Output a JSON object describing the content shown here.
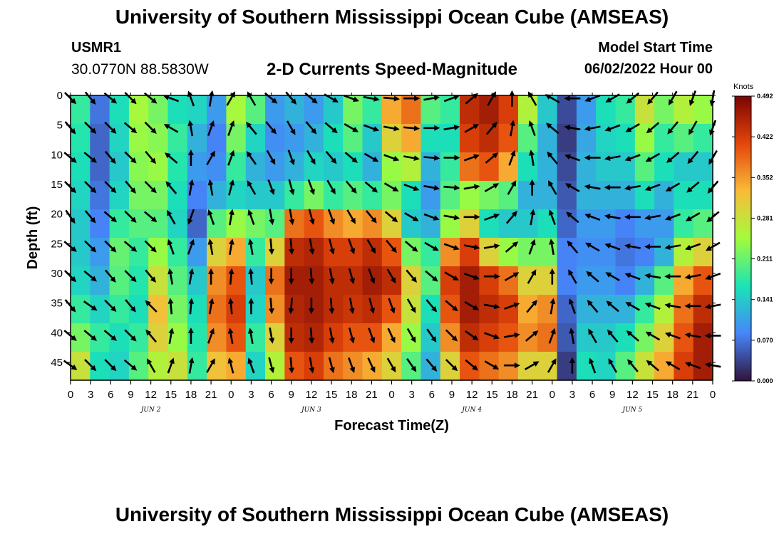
{
  "header": {
    "title_top": "University of Southern Mississippi Ocean Cube (AMSEAS)",
    "title_bottom": "University of Southern Mississippi Ocean Cube (AMSEAS)",
    "station_id": "USMR1",
    "station_coords": "30.0770N  88.5830W",
    "subtitle": "2-D Currents Speed-Magnitude",
    "model_start_label": "Model Start Time",
    "model_start_value": "06/02/2022 Hour 00"
  },
  "chart_data": {
    "type": "heatmap",
    "title": "2-D Currents Speed-Magnitude",
    "xlabel": "Forecast Time(Z)",
    "ylabel": "Depth (ft)",
    "x_tick_labels": [
      "0",
      "3",
      "6",
      "9",
      "12",
      "15",
      "18",
      "21",
      "0",
      "3",
      "6",
      "9",
      "12",
      "15",
      "18",
      "21",
      "0",
      "3",
      "6",
      "9",
      "12",
      "15",
      "18",
      "21",
      "0",
      "3",
      "6",
      "9",
      "12",
      "15",
      "18",
      "21",
      "0"
    ],
    "date_labels": [
      {
        "label": "JUN 2",
        "hour": 12
      },
      {
        "label": "JUN 3",
        "hour": 36
      },
      {
        "label": "JUN 4",
        "hour": 60
      },
      {
        "label": "JUN 5",
        "hour": 84
      }
    ],
    "xlim_hours": [
      0,
      96
    ],
    "y_ticks": [
      0,
      5,
      10,
      15,
      20,
      25,
      30,
      35,
      40,
      45
    ],
    "ylim": [
      0,
      48
    ],
    "y_inverted": true,
    "colorbar": {
      "unit_label": "Knots",
      "tick_labels": [
        "0.000",
        "0.070",
        "0.141",
        "0.211",
        "0.281",
        "0.352",
        "0.422",
        "0.492"
      ],
      "min": 0.0,
      "max": 0.492,
      "colormap": [
        "#30123b",
        "#4686fb",
        "#1ae4b6",
        "#a2fc3c",
        "#fabb39",
        "#e4460a",
        "#7a0403"
      ]
    },
    "speed_columns": [
      {
        "hour": 0,
        "speeds": [
          0.18,
          0.17,
          0.16,
          0.15,
          0.14,
          0.14,
          0.15,
          0.18,
          0.22,
          0.28
        ]
      },
      {
        "hour": 3,
        "speeds": [
          0.07,
          0.06,
          0.06,
          0.07,
          0.08,
          0.1,
          0.12,
          0.15,
          0.18,
          0.16
        ]
      },
      {
        "hour": 6,
        "speeds": [
          0.16,
          0.15,
          0.14,
          0.15,
          0.18,
          0.21,
          0.2,
          0.18,
          0.16,
          0.15
        ]
      },
      {
        "hour": 9,
        "speeds": [
          0.25,
          0.24,
          0.23,
          0.22,
          0.2,
          0.18,
          0.17,
          0.16,
          0.18,
          0.2
        ]
      },
      {
        "hour": 12,
        "speeds": [
          0.22,
          0.23,
          0.24,
          0.22,
          0.2,
          0.24,
          0.28,
          0.32,
          0.3,
          0.26
        ]
      },
      {
        "hour": 15,
        "speeds": [
          0.16,
          0.18,
          0.17,
          0.16,
          0.15,
          0.18,
          0.2,
          0.22,
          0.24,
          0.28
        ]
      },
      {
        "hour": 18,
        "speeds": [
          0.15,
          0.12,
          0.1,
          0.08,
          0.06,
          0.1,
          0.14,
          0.16,
          0.17,
          0.18
        ]
      },
      {
        "hour": 21,
        "speeds": [
          0.1,
          0.08,
          0.09,
          0.12,
          0.2,
          0.3,
          0.36,
          0.38,
          0.36,
          0.32
        ]
      },
      {
        "hour": 24,
        "speeds": [
          0.25,
          0.22,
          0.18,
          0.15,
          0.24,
          0.34,
          0.4,
          0.42,
          0.4,
          0.34
        ]
      },
      {
        "hour": 27,
        "speeds": [
          0.2,
          0.15,
          0.12,
          0.14,
          0.22,
          0.18,
          0.14,
          0.15,
          0.18,
          0.15
        ]
      },
      {
        "hour": 30,
        "speeds": [
          0.1,
          0.09,
          0.1,
          0.14,
          0.2,
          0.3,
          0.38,
          0.36,
          0.3,
          0.26
        ]
      },
      {
        "hour": 33,
        "speeds": [
          0.12,
          0.1,
          0.12,
          0.18,
          0.38,
          0.44,
          0.46,
          0.45,
          0.44,
          0.4
        ]
      },
      {
        "hour": 36,
        "speeds": [
          0.1,
          0.12,
          0.15,
          0.22,
          0.4,
          0.45,
          0.46,
          0.46,
          0.45,
          0.42
        ]
      },
      {
        "hour": 39,
        "speeds": [
          0.14,
          0.16,
          0.14,
          0.18,
          0.36,
          0.42,
          0.44,
          0.44,
          0.42,
          0.38
        ]
      },
      {
        "hour": 42,
        "speeds": [
          0.22,
          0.2,
          0.16,
          0.2,
          0.34,
          0.42,
          0.44,
          0.43,
          0.4,
          0.36
        ]
      },
      {
        "hour": 45,
        "speeds": [
          0.18,
          0.14,
          0.12,
          0.18,
          0.36,
          0.44,
          0.46,
          0.44,
          0.4,
          0.34
        ]
      },
      {
        "hour": 48,
        "speeds": [
          0.34,
          0.3,
          0.24,
          0.22,
          0.3,
          0.4,
          0.44,
          0.4,
          0.34,
          0.3
        ]
      },
      {
        "hour": 51,
        "speeds": [
          0.38,
          0.34,
          0.26,
          0.16,
          0.14,
          0.22,
          0.3,
          0.28,
          0.24,
          0.2
        ]
      },
      {
        "hour": 54,
        "speeds": [
          0.2,
          0.16,
          0.12,
          0.1,
          0.12,
          0.18,
          0.2,
          0.16,
          0.14,
          0.12
        ]
      },
      {
        "hour": 57,
        "speeds": [
          0.18,
          0.16,
          0.18,
          0.2,
          0.24,
          0.36,
          0.42,
          0.4,
          0.36,
          0.3
        ]
      },
      {
        "hour": 60,
        "speeds": [
          0.44,
          0.42,
          0.38,
          0.24,
          0.3,
          0.42,
          0.46,
          0.46,
          0.44,
          0.4
        ]
      },
      {
        "hour": 63,
        "speeds": [
          0.46,
          0.44,
          0.4,
          0.22,
          0.16,
          0.3,
          0.42,
          0.44,
          0.42,
          0.38
        ]
      },
      {
        "hour": 66,
        "speeds": [
          0.42,
          0.4,
          0.34,
          0.2,
          0.14,
          0.24,
          0.38,
          0.42,
          0.4,
          0.36
        ]
      },
      {
        "hour": 69,
        "speeds": [
          0.26,
          0.2,
          0.16,
          0.12,
          0.14,
          0.22,
          0.3,
          0.34,
          0.36,
          0.3
        ]
      },
      {
        "hour": 72,
        "speeds": [
          0.14,
          0.12,
          0.12,
          0.12,
          0.16,
          0.22,
          0.3,
          0.36,
          0.38,
          0.3
        ]
      },
      {
        "hour": 75,
        "speeds": [
          0.04,
          0.03,
          0.04,
          0.05,
          0.06,
          0.08,
          0.08,
          0.06,
          0.05,
          0.03
        ]
      },
      {
        "hour": 78,
        "speeds": [
          0.1,
          0.11,
          0.12,
          0.12,
          0.1,
          0.09,
          0.1,
          0.12,
          0.14,
          0.16
        ]
      },
      {
        "hour": 81,
        "speeds": [
          0.16,
          0.15,
          0.14,
          0.12,
          0.1,
          0.09,
          0.1,
          0.12,
          0.14,
          0.15
        ]
      },
      {
        "hour": 84,
        "speeds": [
          0.18,
          0.16,
          0.14,
          0.12,
          0.08,
          0.07,
          0.08,
          0.12,
          0.16,
          0.2
        ]
      },
      {
        "hour": 87,
        "speeds": [
          0.28,
          0.24,
          0.2,
          0.16,
          0.1,
          0.08,
          0.12,
          0.18,
          0.22,
          0.28
        ]
      },
      {
        "hour": 90,
        "speeds": [
          0.22,
          0.18,
          0.16,
          0.12,
          0.1,
          0.12,
          0.2,
          0.26,
          0.3,
          0.34
        ]
      },
      {
        "hour": 93,
        "speeds": [
          0.26,
          0.2,
          0.14,
          0.16,
          0.18,
          0.26,
          0.34,
          0.38,
          0.4,
          0.42
        ]
      },
      {
        "hour": 96,
        "speeds": [
          0.24,
          0.18,
          0.14,
          0.16,
          0.2,
          0.3,
          0.4,
          0.44,
          0.46,
          0.46
        ]
      }
    ],
    "vector_directions_deg": [
      [
        135,
        140,
        130,
        135,
        145,
        130,
        135,
        140,
        130,
        125
      ],
      [
        140,
        135,
        130,
        135,
        140,
        135,
        130,
        125,
        130,
        135
      ],
      [
        130,
        135,
        140,
        135,
        130,
        135,
        140,
        135,
        130,
        135
      ],
      [
        135,
        130,
        135,
        140,
        135,
        130,
        135,
        140,
        135,
        130
      ],
      [
        130,
        135,
        140,
        135,
        130,
        135,
        140,
        315,
        320,
        330
      ],
      [
        290,
        300,
        310,
        320,
        330,
        340,
        350,
        355,
        10,
        20
      ],
      [
        340,
        350,
        0,
        10,
        200,
        20,
        10,
        5,
        0,
        10
      ],
      [
        10,
        20,
        30,
        350,
        340,
        350,
        0,
        10,
        20,
        30
      ],
      [
        30,
        20,
        20,
        15,
        10,
        10,
        5,
        355,
        350,
        345
      ],
      [
        330,
        320,
        325,
        330,
        340,
        350,
        355,
        0,
        350,
        340
      ],
      [
        130,
        140,
        150,
        160,
        170,
        175,
        180,
        175,
        170,
        165
      ],
      [
        140,
        150,
        160,
        165,
        170,
        175,
        180,
        185,
        180,
        175
      ],
      [
        130,
        140,
        150,
        160,
        165,
        170,
        175,
        180,
        175,
        170
      ],
      [
        120,
        130,
        140,
        150,
        160,
        165,
        170,
        175,
        170,
        165
      ],
      [
        110,
        120,
        130,
        140,
        150,
        160,
        165,
        170,
        165,
        160
      ],
      [
        100,
        110,
        120,
        130,
        140,
        150,
        160,
        165,
        160,
        155
      ],
      [
        95,
        100,
        110,
        120,
        130,
        140,
        150,
        160,
        155,
        150
      ],
      [
        90,
        95,
        100,
        110,
        120,
        130,
        140,
        150,
        150,
        145
      ],
      [
        80,
        90,
        95,
        100,
        110,
        120,
        130,
        140,
        145,
        140
      ],
      [
        70,
        80,
        90,
        95,
        100,
        110,
        120,
        130,
        135,
        135
      ],
      [
        50,
        60,
        70,
        80,
        90,
        100,
        110,
        120,
        125,
        130
      ],
      [
        30,
        40,
        50,
        60,
        70,
        80,
        90,
        100,
        110,
        120
      ],
      [
        0,
        10,
        20,
        30,
        40,
        50,
        60,
        70,
        80,
        90
      ],
      [
        330,
        340,
        350,
        0,
        10,
        20,
        30,
        40,
        50,
        60
      ],
      [
        300,
        310,
        320,
        330,
        340,
        350,
        0,
        10,
        20,
        30
      ],
      [
        270,
        280,
        290,
        300,
        310,
        320,
        330,
        340,
        350,
        0
      ],
      [
        250,
        260,
        270,
        280,
        290,
        300,
        310,
        320,
        330,
        340
      ],
      [
        240,
        250,
        260,
        270,
        280,
        290,
        300,
        310,
        320,
        330
      ],
      [
        230,
        240,
        250,
        260,
        270,
        280,
        290,
        300,
        310,
        320
      ],
      [
        220,
        230,
        240,
        250,
        260,
        270,
        280,
        290,
        300,
        310
      ],
      [
        210,
        220,
        230,
        240,
        250,
        260,
        270,
        280,
        290,
        300
      ],
      [
        200,
        210,
        220,
        230,
        240,
        250,
        260,
        270,
        280,
        290
      ],
      [
        190,
        200,
        210,
        220,
        230,
        240,
        250,
        260,
        270,
        280
      ]
    ]
  }
}
